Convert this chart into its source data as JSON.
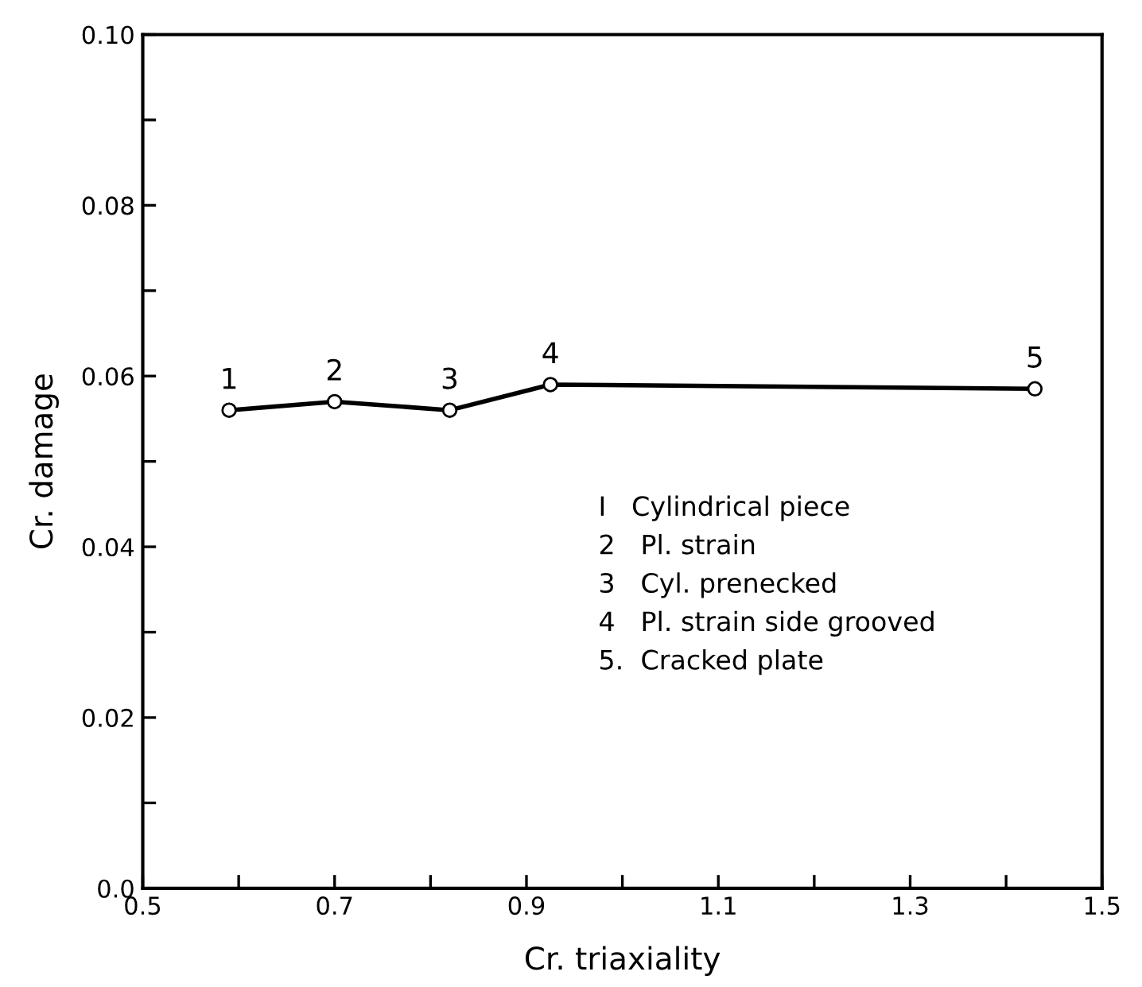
{
  "chart_data": {
    "type": "line",
    "xlabel": "Cr. triaxiality",
    "ylabel": "Cr. damage",
    "x": [
      0.59,
      0.7,
      0.82,
      0.925,
      1.43
    ],
    "series": [
      {
        "color": "#000000",
        "values": [
          0.056,
          0.057,
          0.056,
          0.059,
          0.0585
        ]
      }
    ],
    "marker": "circle",
    "line_style": "solid",
    "grid": false,
    "legend": false,
    "xlim": [
      0.5,
      1.5
    ],
    "ylim": [
      0.0,
      0.1
    ],
    "xticks": [
      0.5,
      {
        "value": 0.6,
        "label": null
      },
      0.7,
      {
        "value": 0.8,
        "label": null
      },
      0.9,
      {
        "value": 1.0,
        "label": null
      },
      1.1,
      {
        "value": 1.2,
        "label": null
      },
      1.3,
      {
        "value": 1.4,
        "label": null
      },
      1.5
    ],
    "yticks": [
      {
        "value": 0.0,
        "label": "0.0"
      },
      {
        "value": 0.01,
        "label": null
      },
      0.02,
      {
        "value": 0.03,
        "label": null
      },
      0.04,
      {
        "value": 0.05,
        "label": null
      },
      0.06,
      {
        "value": 0.07,
        "label": null
      },
      0.08,
      {
        "value": 0.09,
        "label": null
      },
      {
        "value": 0.1,
        "label": "0.10"
      }
    ],
    "annotations": [
      {
        "text": "1",
        "x": 0.59,
        "y": 0.056
      },
      {
        "text": "2",
        "x": 0.7,
        "y": 0.057
      },
      {
        "text": "3",
        "x": 0.82,
        "y": 0.056
      },
      {
        "text": "4",
        "x": 0.925,
        "y": 0.059
      },
      {
        "text": "5",
        "x": 1.43,
        "y": 0.0585
      },
      "I   Cylindrical piece",
      "2   Pl. strain",
      "3   Cyl. prenecked",
      "4   Pl. strain side grooved",
      "5.  Cracked plate"
    ]
  }
}
